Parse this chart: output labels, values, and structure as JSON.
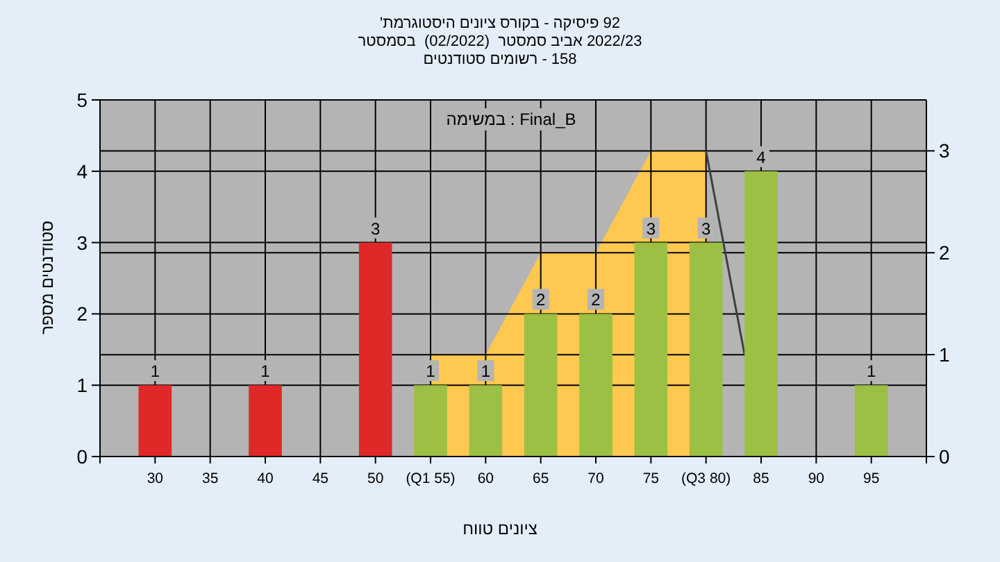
{
  "chart_data": {
    "type": "bar",
    "title": "'היסטוגרמת ציונים בקורס - פיסיקה 92",
    "subtitle": "בסמסטר  (02/2022)  סמסטר אביב 2022/23",
    "annotations": [
      "סטודנטים רשומים - 158",
      "במשימה : Final_B"
    ],
    "xlabel": "טווח ציונים",
    "ylabel": "מספר סטודנטים",
    "x": [
      30,
      40,
      50,
      55,
      60,
      65,
      70,
      75,
      80,
      85,
      95
    ],
    "series": [
      {
        "colors": [
          "#e02828",
          "#e02828",
          "#e02828",
          "#9cc043",
          "#9cc043",
          "#9cc043",
          "#9cc043",
          "#9cc043",
          "#9cc043",
          "#9cc043",
          "#9cc043"
        ],
        "values": [
          1,
          1,
          3,
          1,
          1,
          2,
          2,
          3,
          3,
          4,
          1
        ],
        "value_labels": [
          "1",
          "1",
          "3",
          "1",
          "1",
          "2",
          "2",
          "3",
          "3",
          "4",
          "1"
        ]
      },
      {
        "type": "area",
        "axis": "y2",
        "color": "#ffc850",
        "x": [
          55,
          55,
          60,
          65,
          70,
          75,
          80,
          80
        ],
        "values": [
          0,
          1,
          1,
          2,
          2,
          3,
          3,
          0
        ]
      },
      {
        "type": "line",
        "axis": "y2",
        "color": "#404040",
        "x": [
          80,
          83.5
        ],
        "values": [
          3,
          1
        ]
      }
    ],
    "grid": true,
    "xlim": [
      25,
      100
    ],
    "xticks": [
      {
        "value": 25,
        "label": null
      },
      30,
      35,
      40,
      45,
      50,
      {
        "value": 55,
        "label": "(Q1 55)"
      },
      60,
      65,
      70,
      75,
      {
        "value": 80,
        "label": "(Q3 80)"
      },
      85,
      90,
      95,
      {
        "value": 100,
        "label": null
      }
    ],
    "ylim": [
      0,
      5
    ],
    "yticks": [
      0,
      1,
      2,
      3,
      4,
      5
    ],
    "y2lim": [
      0,
      3.5
    ],
    "y2ticks": [
      0,
      1,
      2,
      3
    ]
  }
}
